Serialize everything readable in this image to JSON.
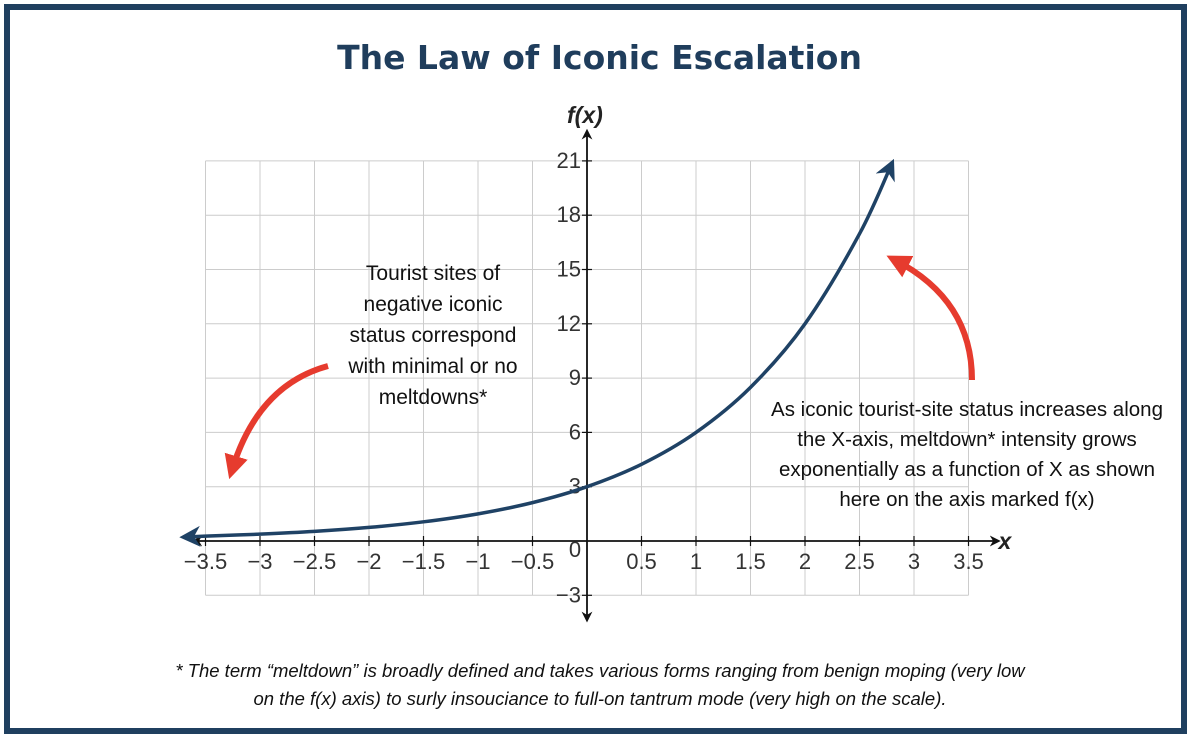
{
  "title": "The Law of Iconic Escalation",
  "notes": {
    "left": "Tourist sites of negative iconic status correspond with minimal or no meltdowns*",
    "right": "As iconic tourist-site status increases along the X-axis, meltdown* intensity grows exponentially as a function of X as shown here on the axis marked f(x)",
    "footnote_line1": "* The term “meltdown” is broadly defined and takes various forms ranging from benign moping (very low",
    "footnote_line2": "on the f(x) axis) to surly insouciance to full-on tantrum mode (very high on the scale)."
  },
  "colors": {
    "curve": "#1f4265",
    "arrow": "#e63b2e",
    "grid": "#cccccc",
    "border": "#1f3f5f"
  },
  "chart_data": {
    "type": "line",
    "function": "f(x) = 3 * 2^x",
    "xlabel": "x",
    "ylabel": "f(x)",
    "xlim": [
      -3.5,
      3.5
    ],
    "ylim": [
      -3,
      21
    ],
    "grid": true,
    "x_ticks": [
      "-3.5",
      "-3",
      "-2.5",
      "-2",
      "-1.5",
      "-1",
      "-0.5",
      "0",
      "0.5",
      "1",
      "1.5",
      "2",
      "2.5",
      "3",
      "3.5"
    ],
    "y_ticks": [
      "21",
      "18",
      "15",
      "12",
      "9",
      "6",
      "3",
      "-3"
    ],
    "series": [
      {
        "x": [
          -3.5,
          -3,
          -2.5,
          -2,
          -1.5,
          -1,
          -0.5,
          0,
          0.5,
          1,
          1.5,
          2,
          2.5,
          2.8
        ],
        "values": [
          0.27,
          0.38,
          0.53,
          0.75,
          1.06,
          1.5,
          2.12,
          3,
          4.24,
          6,
          8.49,
          12,
          16.97,
          20.9
        ]
      }
    ]
  }
}
